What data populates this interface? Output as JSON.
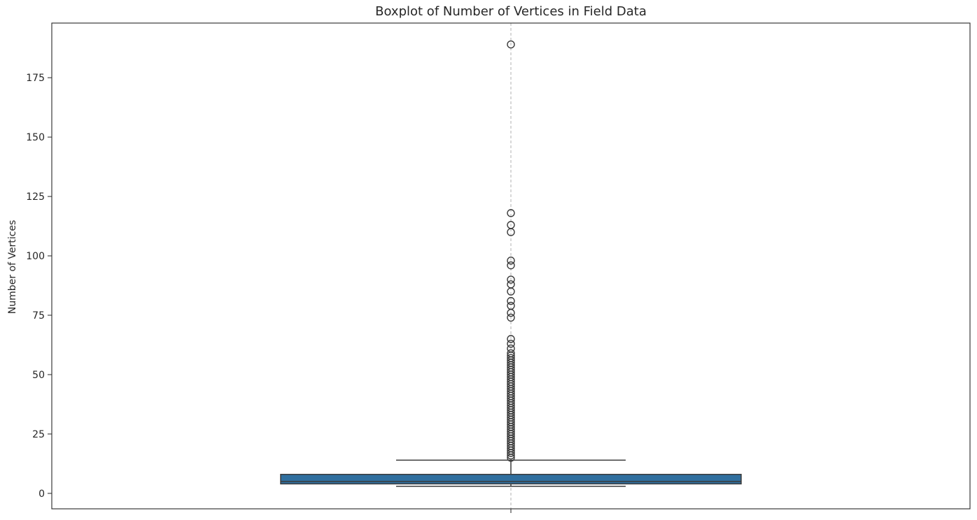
{
  "chart_data": {
    "type": "boxplot",
    "title": "Boxplot of Number of Vertices in Field Data",
    "xlabel": "",
    "ylabel": "Number of Vertices",
    "ylim": [
      -6.5,
      198
    ],
    "yticks": [
      0,
      25,
      50,
      75,
      100,
      125,
      150,
      175
    ],
    "grid": "x-axis only, dashed",
    "box": {
      "min": 3,
      "q1": 4,
      "median": 5,
      "q3": 8,
      "max": 14,
      "color": "#2f6f9f"
    },
    "outliers": [
      189,
      118,
      113,
      110,
      98,
      96,
      90,
      88,
      85,
      81,
      79,
      76,
      74,
      65,
      63,
      61,
      59,
      58,
      57,
      56,
      55,
      54,
      53,
      52,
      51,
      50,
      49,
      48,
      47,
      46,
      45,
      44,
      43,
      42,
      41,
      40,
      39,
      38,
      37,
      36,
      35,
      34,
      33,
      32,
      31,
      30,
      29,
      28,
      27,
      26,
      25,
      24,
      23,
      22,
      21,
      20,
      19,
      18,
      17,
      16,
      15
    ]
  }
}
